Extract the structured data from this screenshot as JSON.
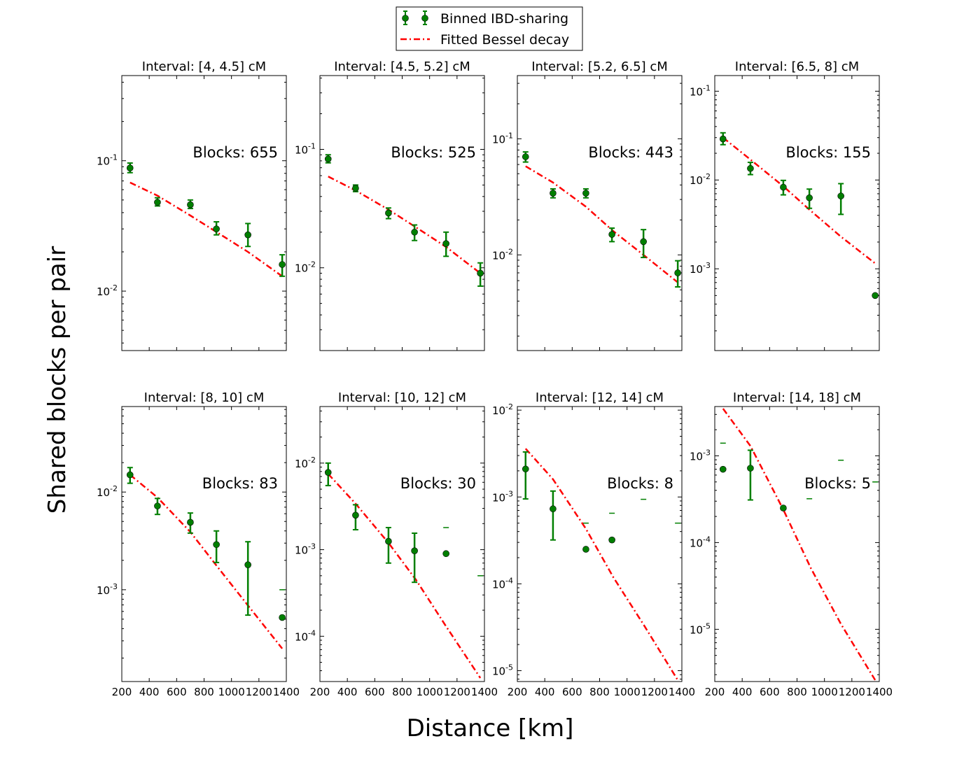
{
  "figure": {
    "xlabel": "Distance [km]",
    "ylabel": "Shared blocks per pair",
    "legend": {
      "position": "top-center",
      "entries": [
        {
          "label": "Binned IBD-sharing",
          "color": "#007f00",
          "marker": "circle-errorbar"
        },
        {
          "label": "Fitted Bessel decay",
          "color": "#ff0000",
          "style": "dash-dot"
        }
      ]
    },
    "colors": {
      "data": "#007f00",
      "fit": "#ff0000"
    }
  },
  "chart_data": [
    {
      "type": "scatter",
      "title": "Interval: [4, 4.5] cM",
      "annotation": "Blocks: 655",
      "yscale": "log",
      "xlim": [
        200,
        1400
      ],
      "ylim": [
        0.0035,
        0.45
      ],
      "xticks": [
        "200",
        "400",
        "600",
        "800",
        "1000",
        "1200",
        "1400"
      ],
      "yticks": [
        {
          "value": 0.1,
          "label": "10^-1"
        },
        {
          "value": 0.01,
          "label": "10^-2"
        }
      ],
      "points": [
        {
          "x": 260,
          "y": 0.088,
          "lo": 0.081,
          "hi": 0.096
        },
        {
          "x": 460,
          "y": 0.048,
          "lo": 0.045,
          "hi": 0.052
        },
        {
          "x": 700,
          "y": 0.046,
          "lo": 0.043,
          "hi": 0.05
        },
        {
          "x": 890,
          "y": 0.03,
          "lo": 0.027,
          "hi": 0.034
        },
        {
          "x": 1120,
          "y": 0.027,
          "lo": 0.022,
          "hi": 0.033
        },
        {
          "x": 1370,
          "y": 0.016,
          "lo": 0.013,
          "hi": 0.019
        }
      ],
      "fit": {
        "x": [
          260,
          460,
          700,
          900,
          1120,
          1370
        ],
        "y": [
          0.068,
          0.054,
          0.038,
          0.028,
          0.02,
          0.013
        ]
      }
    },
    {
      "type": "scatter",
      "title": "Interval: [4.5, 5.2] cM",
      "annotation": "Blocks: 525",
      "yscale": "log",
      "xlim": [
        200,
        1400
      ],
      "ylim": [
        0.002,
        0.42
      ],
      "xticks": [
        "200",
        "400",
        "600",
        "800",
        "1000",
        "1200",
        "1400"
      ],
      "yticks": [
        {
          "value": 0.1,
          "label": "10^-1"
        },
        {
          "value": 0.01,
          "label": "10^-2"
        }
      ],
      "points": [
        {
          "x": 260,
          "y": 0.083,
          "lo": 0.077,
          "hi": 0.09
        },
        {
          "x": 460,
          "y": 0.047,
          "lo": 0.044,
          "hi": 0.05
        },
        {
          "x": 700,
          "y": 0.029,
          "lo": 0.026,
          "hi": 0.032
        },
        {
          "x": 890,
          "y": 0.02,
          "lo": 0.017,
          "hi": 0.023
        },
        {
          "x": 1120,
          "y": 0.016,
          "lo": 0.0125,
          "hi": 0.02
        },
        {
          "x": 1370,
          "y": 0.009,
          "lo": 0.007,
          "hi": 0.011
        }
      ],
      "fit": {
        "x": [
          260,
          460,
          700,
          900,
          1120,
          1370
        ],
        "y": [
          0.059,
          0.045,
          0.031,
          0.022,
          0.015,
          0.009
        ]
      }
    },
    {
      "type": "scatter",
      "title": "Interval: [5.2, 6.5] cM",
      "annotation": "Blocks: 443",
      "yscale": "log",
      "xlim": [
        200,
        1400
      ],
      "ylim": [
        0.0015,
        0.35
      ],
      "xticks": [
        "200",
        "400",
        "600",
        "800",
        "1000",
        "1200",
        "1400"
      ],
      "yticks": [
        {
          "value": 0.1,
          "label": "10^-1"
        },
        {
          "value": 0.01,
          "label": "10^-2"
        }
      ],
      "points": [
        {
          "x": 260,
          "y": 0.07,
          "lo": 0.063,
          "hi": 0.077
        },
        {
          "x": 460,
          "y": 0.034,
          "lo": 0.031,
          "hi": 0.037
        },
        {
          "x": 700,
          "y": 0.034,
          "lo": 0.031,
          "hi": 0.037
        },
        {
          "x": 890,
          "y": 0.015,
          "lo": 0.013,
          "hi": 0.017
        },
        {
          "x": 1120,
          "y": 0.013,
          "lo": 0.0095,
          "hi": 0.0165
        },
        {
          "x": 1370,
          "y": 0.007,
          "lo": 0.0053,
          "hi": 0.0089
        }
      ],
      "fit": {
        "x": [
          260,
          460,
          700,
          900,
          1120,
          1370
        ],
        "y": [
          0.058,
          0.042,
          0.026,
          0.016,
          0.01,
          0.0058
        ]
      }
    },
    {
      "type": "scatter",
      "title": "Interval: [6.5, 8] cM",
      "annotation": "Blocks: 155",
      "yscale": "log",
      "xlim": [
        200,
        1400
      ],
      "ylim": [
        0.00012,
        0.15
      ],
      "xticks": [
        "200",
        "400",
        "600",
        "800",
        "1000",
        "1200",
        "1400"
      ],
      "yticks": [
        {
          "value": 0.1,
          "label": "10^-1"
        },
        {
          "value": 0.01,
          "label": "10^-2"
        },
        {
          "value": 0.001,
          "label": "10^-3"
        }
      ],
      "points": [
        {
          "x": 260,
          "y": 0.029,
          "lo": 0.025,
          "hi": 0.034
        },
        {
          "x": 460,
          "y": 0.0135,
          "lo": 0.0115,
          "hi": 0.0158
        },
        {
          "x": 700,
          "y": 0.0083,
          "lo": 0.0068,
          "hi": 0.0099
        },
        {
          "x": 890,
          "y": 0.0063,
          "lo": 0.0048,
          "hi": 0.0079
        },
        {
          "x": 1120,
          "y": 0.0066,
          "lo": 0.0041,
          "hi": 0.0091
        },
        {
          "x": 1370,
          "y": 0.0005
        }
      ],
      "fit": {
        "x": [
          260,
          460,
          700,
          900,
          1120,
          1370
        ],
        "y": [
          0.03,
          0.017,
          0.0085,
          0.0045,
          0.0023,
          0.00115
        ]
      }
    },
    {
      "type": "scatter",
      "title": "Interval: [8, 10] cM",
      "annotation": "Blocks: 83",
      "yscale": "log",
      "xlim": [
        200,
        1400
      ],
      "ylim": [
        0.000115,
        0.075
      ],
      "xticks": [
        "200",
        "400",
        "600",
        "800",
        "1000",
        "1200",
        "1400"
      ],
      "yticks": [
        {
          "value": 0.01,
          "label": "10^-2"
        },
        {
          "value": 0.001,
          "label": "10^-3"
        }
      ],
      "points": [
        {
          "x": 260,
          "y": 0.015,
          "lo": 0.0123,
          "hi": 0.0178
        },
        {
          "x": 460,
          "y": 0.0072,
          "lo": 0.0059,
          "hi": 0.0086
        },
        {
          "x": 700,
          "y": 0.0049,
          "lo": 0.0038,
          "hi": 0.0061
        },
        {
          "x": 890,
          "y": 0.0029,
          "lo": 0.0019,
          "hi": 0.004
        },
        {
          "x": 1120,
          "y": 0.0018,
          "lo": 0.00055,
          "hi": 0.0031
        },
        {
          "x": 1370,
          "y": 0.00052,
          "hi": 0.001
        }
      ],
      "fit": {
        "x": [
          260,
          460,
          700,
          900,
          1120,
          1370
        ],
        "y": [
          0.015,
          0.0088,
          0.0039,
          0.0017,
          0.00069,
          0.00025
        ]
      }
    },
    {
      "type": "scatter",
      "title": "Interval: [10, 12] cM",
      "annotation": "Blocks: 30",
      "yscale": "log",
      "xlim": [
        200,
        1400
      ],
      "ylim": [
        3e-05,
        0.045
      ],
      "xticks": [
        "200",
        "400",
        "600",
        "800",
        "1000",
        "1200",
        "1400"
      ],
      "yticks": [
        {
          "value": 0.01,
          "label": "10^-2"
        },
        {
          "value": 0.001,
          "label": "10^-3"
        },
        {
          "value": 0.0001,
          "label": "10^-4"
        }
      ],
      "points": [
        {
          "x": 260,
          "y": 0.0078,
          "lo": 0.0055,
          "hi": 0.01
        },
        {
          "x": 460,
          "y": 0.0025,
          "lo": 0.0017,
          "hi": 0.0033
        },
        {
          "x": 700,
          "y": 0.00125,
          "lo": 0.0007,
          "hi": 0.0018
        },
        {
          "x": 890,
          "y": 0.00097,
          "lo": 0.00042,
          "hi": 0.00155
        },
        {
          "x": 1120,
          "y": 0.0009,
          "hi": 0.0018
        },
        {
          "x": 1370,
          "hi": 0.0005
        }
      ],
      "fit": {
        "x": [
          260,
          460,
          700,
          900,
          1120,
          1370
        ],
        "y": [
          0.0075,
          0.0034,
          0.0012,
          0.00045,
          0.00013,
          3.3e-05
        ]
      }
    },
    {
      "type": "scatter",
      "title": "Interval: [12, 14] cM",
      "annotation": "Blocks: 8",
      "yscale": "log",
      "xlim": [
        200,
        1400
      ],
      "ylim": [
        7.5e-06,
        0.011
      ],
      "xticks": [
        "200",
        "400",
        "600",
        "800",
        "1000",
        "1200",
        "1400"
      ],
      "yticks": [
        {
          "value": 0.01,
          "label": "10^-2"
        },
        {
          "value": 0.001,
          "label": "10^-3"
        },
        {
          "value": 0.0001,
          "label": "10^-4"
        },
        {
          "value": 1e-05,
          "label": "10^-5"
        }
      ],
      "points": [
        {
          "x": 260,
          "y": 0.0021,
          "lo": 0.00095,
          "hi": 0.0033
        },
        {
          "x": 460,
          "y": 0.00073,
          "lo": 0.00032,
          "hi": 0.00117
        },
        {
          "x": 700,
          "y": 0.00025,
          "hi": 0.0005
        },
        {
          "x": 890,
          "y": 0.00032,
          "hi": 0.00065
        },
        {
          "x": 1120,
          "hi": 0.00094
        },
        {
          "x": 1370,
          "hi": 0.0005
        }
      ],
      "fit": {
        "x": [
          260,
          460,
          700,
          900,
          1120,
          1370
        ],
        "y": [
          0.0036,
          0.0016,
          0.00043,
          0.000119,
          3.4e-05,
          7.8e-06
        ]
      }
    },
    {
      "type": "scatter",
      "title": "Interval: [14, 18] cM",
      "annotation": "Blocks: 5",
      "yscale": "log",
      "xlim": [
        200,
        1400
      ],
      "ylim": [
        2.5e-06,
        0.0037
      ],
      "xticks": [
        "200",
        "400",
        "600",
        "800",
        "1000",
        "1200",
        "1400"
      ],
      "yticks": [
        {
          "value": 0.001,
          "label": "10^-3"
        },
        {
          "value": 0.0001,
          "label": "10^-4"
        },
        {
          "value": 1e-05,
          "label": "10^-5"
        }
      ],
      "points": [
        {
          "x": 260,
          "y": 0.0007,
          "hi": 0.0014
        },
        {
          "x": 460,
          "y": 0.00072,
          "lo": 0.00031,
          "hi": 0.00116
        },
        {
          "x": 700,
          "y": 0.00025
        },
        {
          "x": 890,
          "hi": 0.00032
        },
        {
          "x": 1120,
          "hi": 0.00089
        },
        {
          "x": 1370,
          "hi": 0.0005
        }
      ],
      "fit": {
        "x": [
          260,
          460,
          700,
          900,
          1120,
          1370
        ],
        "y": [
          0.0035,
          0.0013,
          0.00024,
          5.1e-05,
          1.15e-05,
          2.6e-06
        ]
      }
    }
  ]
}
